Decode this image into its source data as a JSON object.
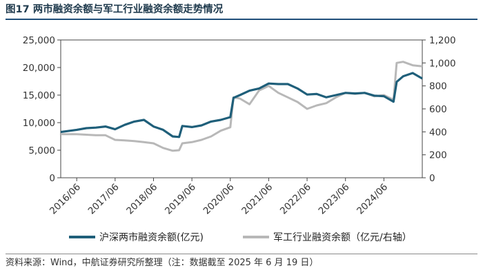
{
  "figure": {
    "title": "图17 两市融资余额与军工行业融资余额走势情况",
    "source": "资料来源：Wind，中航证券研究所整理（注：数据截至 2025 年 6 月 19 日）"
  },
  "colors": {
    "left_series": "#1f5f7a",
    "right_series": "#b8b8b8",
    "axis": "#444444",
    "title_rule": "#1f4e79"
  },
  "chart_data": {
    "type": "line",
    "title": "两市融资余额与军工行业融资余额走势情况",
    "x_ticks": [
      "2016/06",
      "2017/06",
      "2018/06",
      "2019/06",
      "2020/06",
      "2021/06",
      "2022/06",
      "2023/06",
      "2024/06"
    ],
    "x_range": [
      "2016/01",
      "2025/06"
    ],
    "y_left": {
      "ticks": [
        "25,000",
        "20,000",
        "15,000",
        "10,000",
        "5,000",
        "0"
      ],
      "ylim": [
        0,
        25000
      ]
    },
    "y_right": {
      "ticks": [
        "1,200",
        "1,000",
        "800",
        "600",
        "400",
        "200",
        "0"
      ],
      "ylim": [
        0,
        1200
      ]
    },
    "legend_position": "bottom",
    "series": [
      {
        "name": "沪深两市融资余额(亿元)",
        "axis": "left",
        "x": [
          "2016/01",
          "2016/06",
          "2016/09",
          "2016/12",
          "2017/03",
          "2017/06",
          "2017/09",
          "2017/12",
          "2018/03",
          "2018/06",
          "2018/09",
          "2018/12",
          "2019/02",
          "2019/03",
          "2019/06",
          "2019/09",
          "2019/12",
          "2020/03",
          "2020/06",
          "2020/07",
          "2020/09",
          "2020/12",
          "2021/03",
          "2021/06",
          "2021/09",
          "2021/12",
          "2022/03",
          "2022/06",
          "2022/09",
          "2022/12",
          "2023/03",
          "2023/06",
          "2023/09",
          "2023/12",
          "2024/03",
          "2024/06",
          "2024/09",
          "2024/10",
          "2024/12",
          "2025/03",
          "2025/06"
        ],
        "values": [
          8300,
          8700,
          9000,
          9100,
          9300,
          8800,
          9600,
          10200,
          10500,
          9300,
          8700,
          7500,
          7400,
          9400,
          9200,
          9500,
          10200,
          10500,
          11000,
          14500,
          15000,
          15800,
          16200,
          17100,
          17000,
          17000,
          16200,
          15100,
          15200,
          14600,
          15000,
          15400,
          15300,
          15400,
          14900,
          14800,
          13800,
          17400,
          18400,
          19000,
          18000
        ]
      },
      {
        "name": "军工行业融资余额（亿元/右轴）",
        "axis": "right",
        "x": [
          "2016/01",
          "2016/06",
          "2016/09",
          "2016/12",
          "2017/03",
          "2017/06",
          "2017/09",
          "2017/12",
          "2018/03",
          "2018/06",
          "2018/09",
          "2018/12",
          "2019/02",
          "2019/03",
          "2019/06",
          "2019/09",
          "2019/12",
          "2020/03",
          "2020/06",
          "2020/07",
          "2020/09",
          "2020/12",
          "2021/03",
          "2021/06",
          "2021/09",
          "2021/12",
          "2022/03",
          "2022/06",
          "2022/09",
          "2022/12",
          "2023/03",
          "2023/06",
          "2023/09",
          "2023/12",
          "2024/03",
          "2024/06",
          "2024/09",
          "2024/10",
          "2024/12",
          "2025/03",
          "2025/06"
        ],
        "values": [
          380,
          380,
          375,
          370,
          370,
          330,
          325,
          320,
          310,
          300,
          260,
          235,
          240,
          300,
          310,
          330,
          360,
          410,
          440,
          700,
          690,
          640,
          760,
          800,
          740,
          700,
          660,
          600,
          630,
          650,
          700,
          740,
          730,
          740,
          710,
          720,
          680,
          1000,
          1010,
          980,
          970
        ]
      }
    ]
  }
}
